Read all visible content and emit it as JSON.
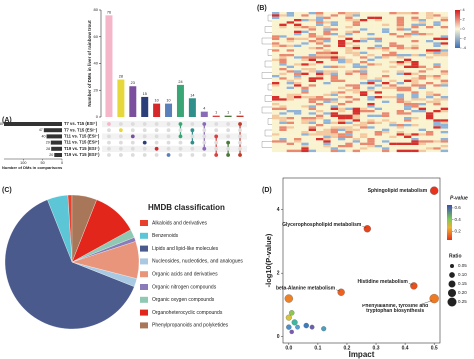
{
  "chart_data": [
    {
      "type": "bar",
      "label": "(A)",
      "y_label": "Number of DMs in liver of rainbow trout",
      "ylim": [
        0,
        80
      ],
      "yticks": [
        0,
        20,
        40,
        60,
        80
      ],
      "values": [
        76,
        28,
        23,
        15,
        10,
        10,
        24,
        14,
        4,
        1,
        1,
        1
      ],
      "colors": [
        "#f4b6c8",
        "#e6d83a",
        "#7b4f9e",
        "#2c3e7a",
        "#d62828",
        "#5b7fb8",
        "#3aa676",
        "#2f8f8a",
        "#8a6bb8",
        "#d94040",
        "#4a7a3a",
        "#c0392b"
      ],
      "sets": {
        "names": [
          "T7 vs. T15 (ESI⁺)",
          "T7 vs. T15 (ESI⁻)",
          "T11 vs. T15 (ESI⁻)",
          "T11 vs. T15 (ESI⁺)",
          "T19 vs. T15 (ESI⁻)",
          "T19 vs. T15 (ESI⁺)"
        ],
        "values": [
          150,
          47,
          40,
          29,
          28,
          20
        ],
        "color": "#333333",
        "xlim": [
          0,
          150
        ],
        "xticks": [
          0,
          50,
          100
        ],
        "x_label": "Number of DMs in comparisons"
      }
    },
    {
      "type": "heatmap",
      "label": "(B)",
      "zlim": [
        -4,
        4
      ],
      "zticks": [
        -4,
        -2,
        0,
        2,
        4
      ]
    },
    {
      "type": "pie",
      "title": "HMDB classification",
      "label": "(C)",
      "categories": [
        "Alkaloids and derivatives",
        "Benzenoids",
        "Lipids and lipid-like molecules",
        "Nucleosides, nucleotides, and analogues",
        "Organic acids and derivatives",
        "Organic nitrogen compounds",
        "Organic oxygen compounds",
        "Organoheterocyclic compounds",
        "Phenylpropanoids and polyketides"
      ],
      "values": [
        1,
        5,
        63,
        2,
        9,
        1,
        2,
        11,
        6
      ],
      "colors": [
        "#e8402c",
        "#5cc6d6",
        "#4b5a8c",
        "#a9c9e2",
        "#e8957c",
        "#8a7cb8",
        "#8fc9b4",
        "#e3261c",
        "#a8775a"
      ]
    },
    {
      "type": "scatter",
      "label": "(D)",
      "x_label": "Impact",
      "y_label": "-log10(P-value)",
      "xlim": [
        -0.02,
        0.52
      ],
      "xticks": [
        {
          "value": 0,
          "label": "0.0"
        },
        0.1,
        0.2,
        0.3,
        0.4,
        0.5
      ],
      "ylim": [
        -0.2,
        5
      ],
      "yticks": [
        0,
        2,
        4
      ],
      "x": [
        0.5,
        0.27,
        0.5,
        0.43,
        0.18,
        0.0,
        0.0,
        0.01,
        0.02,
        0.0,
        0.03,
        0.06,
        0.08,
        0.12,
        0.01
      ],
      "values": [
        4.6,
        3.4,
        1.2,
        1.6,
        1.4,
        1.2,
        0.6,
        0.75,
        0.45,
        0.3,
        0.3,
        0.35,
        0.3,
        0.25,
        0.15
      ],
      "sizes": [
        0.2,
        0.15,
        0.25,
        0.15,
        0.15,
        0.2,
        0.1,
        0.08,
        0.1,
        0.08,
        0.06,
        0.08,
        0.06,
        0.07,
        0.05
      ],
      "colors": [
        "#e8341c",
        "#e8441c",
        "#f07a22",
        "#e8501c",
        "#f06020",
        "#f08024",
        "#d9c43a",
        "#8cc850",
        "#3cb8a0",
        "#4a90c8",
        "#5aa0d0",
        "#3a7cc0",
        "#6a60b0",
        "#4aa0c0",
        "#7c5cb0"
      ],
      "labels": [
        "Sphingolipid metabolism",
        "Glycerophospholipid metabolism",
        "Phenylalanine, tyrosine and tryptophan biosynthesis",
        "Histidine metabolism",
        "beta-Alanine metabolism",
        null,
        null,
        null,
        null,
        null,
        null,
        null,
        null,
        null,
        null
      ],
      "color_label": "P-value",
      "clim": [
        0.05,
        0.65
      ],
      "color_ticks": [
        0.2,
        0.4,
        0.6
      ],
      "size_label": "Ratio",
      "size_ticks": [
        0.05,
        {
          "value": 0.1,
          "label": "0.10"
        },
        0.15,
        {
          "value": 0.2,
          "label": "0.20"
        },
        0.25
      ]
    }
  ]
}
